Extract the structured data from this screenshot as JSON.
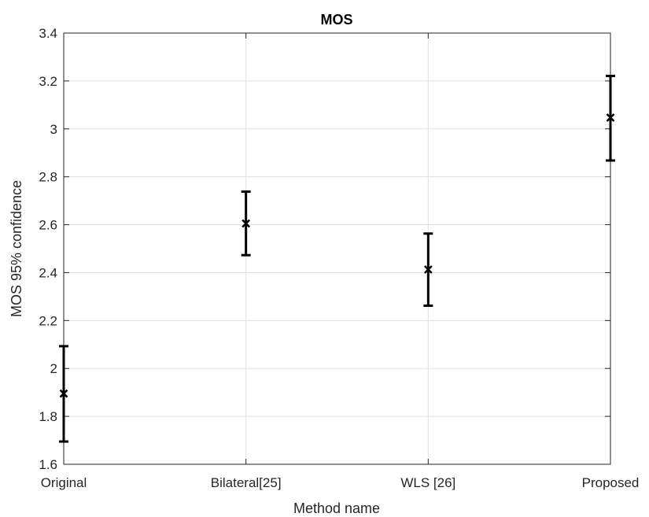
{
  "chart_data": {
    "type": "errorbar",
    "title": "MOS",
    "xlabel": "Method name",
    "ylabel": "MOS 95% confidence",
    "categories": [
      "Original",
      "Bilateral[25]",
      "WLS [26]",
      "Proposed"
    ],
    "series": [
      {
        "values": [
          1.895,
          2.605,
          2.413,
          3.047
        ],
        "lower": [
          1.695,
          2.473,
          2.262,
          2.868
        ],
        "upper": [
          2.093,
          2.738,
          2.563,
          3.221
        ]
      }
    ],
    "ylim": [
      1.6,
      3.4
    ],
    "yticks": [
      1.6,
      1.8,
      2,
      2.2,
      2.4,
      2.6,
      2.8,
      3,
      3.2,
      3.4
    ],
    "ytick_labels": [
      "1.6",
      "1.8",
      "2",
      "2.2",
      "2.4",
      "2.6",
      "2.8",
      "3",
      "3.2",
      "3.4"
    ],
    "grid": true,
    "line_color": "#000000",
    "grid_color": "#e0e0e0"
  }
}
